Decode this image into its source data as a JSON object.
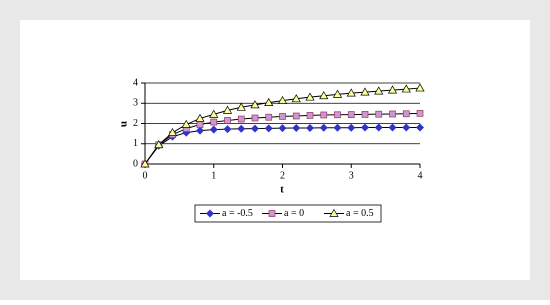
{
  "chart_data": {
    "type": "line",
    "x_label": "t",
    "y_label": "u",
    "x": [
      0,
      0.2,
      0.4,
      0.6,
      0.8,
      1,
      1.2,
      1.4,
      1.6,
      1.8,
      2,
      2.2,
      2.4,
      2.6,
      2.8,
      3,
      3.2,
      3.4,
      3.6,
      3.8,
      4
    ],
    "series": [
      {
        "name": "a = -0.5",
        "color": "#3333cc",
        "marker": "diamond",
        "values": [
          0,
          0.9,
          1.35,
          1.55,
          1.65,
          1.7,
          1.72,
          1.74,
          1.75,
          1.76,
          1.77,
          1.78,
          1.78,
          1.79,
          1.79,
          1.79,
          1.8,
          1.8,
          1.8,
          1.8,
          1.8
        ]
      },
      {
        "name": "a = 0",
        "color": "#cc99cc",
        "marker": "square",
        "values": [
          0,
          0.95,
          1.45,
          1.75,
          1.95,
          2.07,
          2.15,
          2.22,
          2.27,
          2.31,
          2.35,
          2.37,
          2.4,
          2.42,
          2.43,
          2.44,
          2.45,
          2.46,
          2.47,
          2.48,
          2.5
        ]
      },
      {
        "name": "a = 0.5",
        "color": "#ffff99",
        "marker": "triangle",
        "values": [
          0,
          0.95,
          1.55,
          1.95,
          2.25,
          2.45,
          2.65,
          2.8,
          2.92,
          3.03,
          3.13,
          3.22,
          3.3,
          3.37,
          3.44,
          3.5,
          3.55,
          3.6,
          3.65,
          3.7,
          3.75
        ]
      }
    ],
    "line_color": "#000000",
    "xlim": [
      0,
      4
    ],
    "xticks": [
      0,
      1,
      2,
      3,
      4
    ],
    "ylim": [
      0,
      4
    ],
    "yticks": [
      0,
      1,
      2,
      3,
      4
    ],
    "grid": true,
    "legend": "bottom"
  }
}
